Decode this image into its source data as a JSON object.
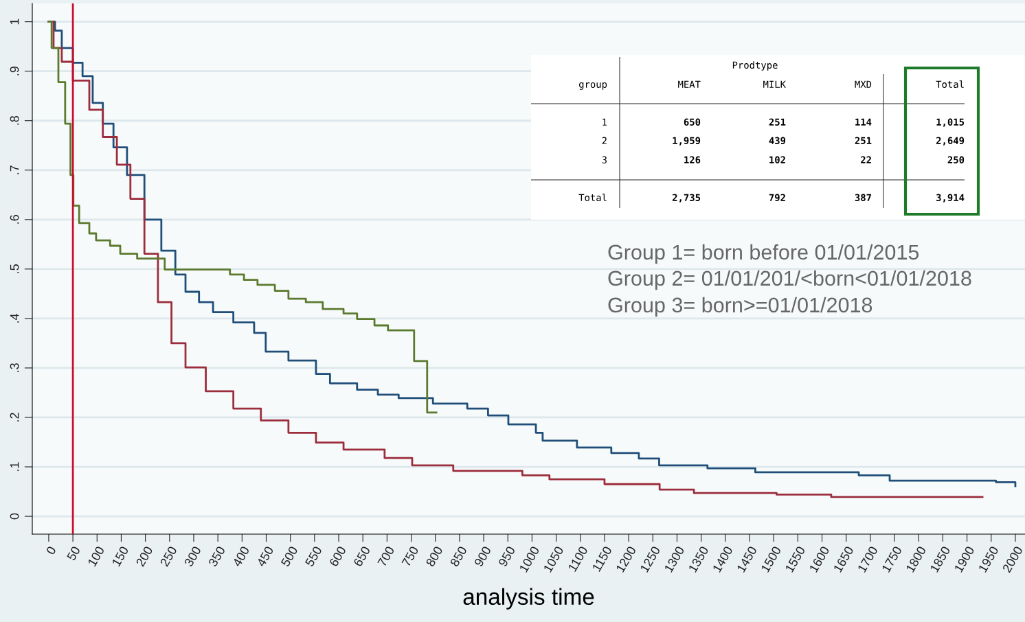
{
  "chart_data": {
    "type": "step",
    "xlabel": "analysis time",
    "xlim": [
      -34,
      2020
    ],
    "ylim": [
      -0.036,
      1.037
    ],
    "xticks": [
      0,
      50,
      100,
      150,
      200,
      250,
      300,
      350,
      400,
      450,
      500,
      550,
      600,
      650,
      700,
      750,
      800,
      850,
      900,
      950,
      1000,
      1050,
      1100,
      1150,
      1200,
      1250,
      1300,
      1350,
      1400,
      1450,
      1500,
      1550,
      1600,
      1650,
      1700,
      1750,
      1800,
      1850,
      1900,
      1950,
      2000
    ],
    "yticks": [
      0,
      {
        "value": 0.1,
        "label": ".1"
      },
      {
        "value": 0.2,
        "label": ".2"
      },
      {
        "value": 0.3,
        "label": ".3"
      },
      {
        "value": 0.4,
        "label": ".4"
      },
      {
        "value": 0.5,
        "label": ".5"
      },
      {
        "value": 0.6,
        "label": ".6"
      },
      {
        "value": 0.7,
        "label": ".7"
      },
      {
        "value": 0.8,
        "label": ".8"
      },
      {
        "value": 0.9,
        "label": ".9"
      },
      1
    ],
    "grid": "y",
    "legend": false,
    "marker": "none",
    "line_style": "solid",
    "ref_lines": [
      {
        "axis": "x",
        "value": 50,
        "label": null,
        "color": "#c8102e"
      }
    ],
    "series": [
      {
        "color": "#1f4e79",
        "x": [
          0,
          13,
          27,
          50,
          70,
          91,
          112,
          134,
          162,
          198,
          233,
          262,
          283,
          311,
          340,
          382,
          425,
          449,
          449,
          496,
          553,
          582,
          638,
          681,
          724,
          795,
          866,
          909,
          951,
          1008,
          1022,
          1093,
          1164,
          1221,
          1263,
          1363,
          1462,
          1676,
          1740,
          1960,
          2000
        ],
        "values": [
          1.0,
          0.982,
          0.947,
          0.917,
          0.89,
          0.836,
          0.794,
          0.746,
          0.69,
          0.6,
          0.537,
          0.489,
          0.454,
          0.433,
          0.413,
          0.392,
          0.371,
          0.364,
          0.333,
          0.315,
          0.288,
          0.269,
          0.256,
          0.246,
          0.239,
          0.228,
          0.218,
          0.204,
          0.186,
          0.169,
          0.153,
          0.139,
          0.128,
          0.117,
          0.103,
          0.097,
          0.089,
          0.083,
          0.072,
          0.069,
          0.061
        ]
      },
      {
        "color": "#9b2d3c",
        "x": [
          0,
          10,
          27,
          50,
          84,
          112,
          141,
          169,
          198,
          226,
          254,
          283,
          325,
          382,
          439,
          496,
          553,
          610,
          695,
          752,
          837,
          980,
          1036,
          1150,
          1264,
          1335,
          1506,
          1619,
          1932
        ],
        "values": [
          1.0,
          0.947,
          0.919,
          0.881,
          0.822,
          0.767,
          0.711,
          0.642,
          0.531,
          0.433,
          0.35,
          0.301,
          0.253,
          0.218,
          0.194,
          0.169,
          0.149,
          0.135,
          0.118,
          0.103,
          0.092,
          0.083,
          0.075,
          0.065,
          0.054,
          0.047,
          0.044,
          0.039,
          0.039
        ]
      },
      {
        "color": "#5b7a2e",
        "x": [
          0,
          6,
          20,
          34,
          45,
          51,
          63,
          84,
          98,
          127,
          148,
          183,
          240,
          375,
          404,
          432,
          468,
          496,
          532,
          567,
          610,
          638,
          674,
          702,
          756,
          783,
          802
        ],
        "values": [
          1.0,
          0.947,
          0.878,
          0.794,
          0.69,
          0.628,
          0.593,
          0.572,
          0.558,
          0.547,
          0.531,
          0.521,
          0.499,
          0.489,
          0.478,
          0.468,
          0.456,
          0.44,
          0.433,
          0.419,
          0.41,
          0.399,
          0.386,
          0.376,
          0.314,
          0.21,
          0.21
        ]
      }
    ],
    "annotations": [
      "Prodtype",
      "group",
      "MEAT",
      "MILK",
      "MXD",
      "Total",
      "1",
      "650",
      "251",
      "114",
      "1,015",
      "2",
      "1,959",
      "439",
      "251",
      "2,649",
      "3",
      "126",
      "102",
      "22",
      "250",
      "Total",
      "2,735",
      "792",
      "387",
      "3,914",
      "Group 1= born before 01/01/2015",
      "Group 2= 01/01/201/<born<01/01/2018",
      "Group 3= born>=01/01/2018"
    ]
  }
}
